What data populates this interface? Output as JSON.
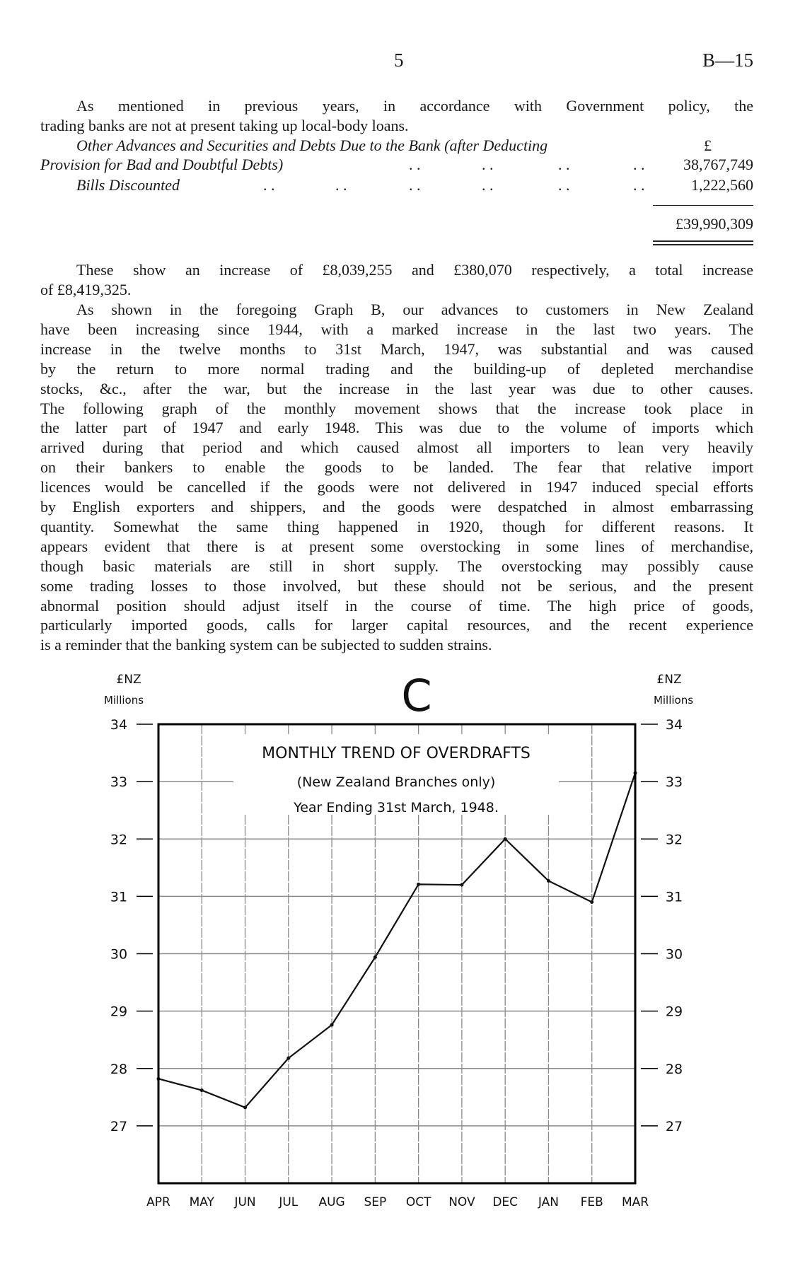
{
  "header": {
    "page_number": "5",
    "reference": "B—15"
  },
  "para1": [
    "As mentioned in previous years, in accordance with Government policy, the",
    "trading banks are not at present taking up local-body loans."
  ],
  "statement": {
    "currency_symbol": "£",
    "leader": ". .",
    "rows": [
      {
        "label_line1": "Other Advances and Securities and Debts Due to the Bank (after Deducting",
        "label_line2": "Provision for Bad and Doubtful Debts)",
        "value": "38,767,749"
      },
      {
        "label": "Bills Discounted",
        "value": "1,222,560"
      }
    ],
    "total": "£39,990,309"
  },
  "para2": [
    "These show an increase of £8,039,255 and £380,070 respectively, a total increase",
    "of £8,419,325."
  ],
  "para3": [
    "As shown in the foregoing Graph B, our advances to customers in New Zealand",
    "have been increasing since 1944, with a marked increase in the last two years. The",
    "increase in the twelve months to 31st March, 1947, was substantial and was caused",
    "by the return to more normal trading and the building-up of depleted merchandise",
    "stocks, &c., after the war, but the increase in the last year was due to other causes.",
    "The following graph of the monthly movement shows that the increase took place in",
    "the latter part of 1947 and early 1948. This was due to the volume of imports which",
    "arrived during that period and which caused almost all importers to lean very heavily",
    "on their bankers to enable the goods to be landed. The fear that relative import",
    "licences would be cancelled if the goods were not delivered in 1947 induced special efforts",
    "by English exporters and shippers, and the goods were despatched in almost embarrassing",
    "quantity. Somewhat the same thing happened in 1920, though for different reasons. It",
    "appears evident that there is at present some overstocking in some lines of merchandise,",
    "though basic materials are still in short supply. The overstocking may possibly cause",
    "some trading losses to those involved, but these should not be serious, and the present",
    "abnormal position should adjust itself in the course of time. The high price of goods,",
    "particularly imported goods, calls for larger capital resources, and the recent experience",
    "is a reminder that the banking system can be subjected to sudden strains."
  ],
  "chart_data": {
    "type": "line",
    "graph_letter": "C",
    "title": "MONTHLY TREND OF OVERDRAFTS",
    "subtitle": "(New Zealand Branches only)",
    "subtitle2": "Year Ending 31st March, 1948.",
    "ylabel_left": [
      "£NZ",
      "Millions"
    ],
    "ylabel_right": [
      "£NZ",
      "Millions"
    ],
    "categories": [
      "APR",
      "MAY",
      "JUN",
      "JUL",
      "AUG",
      "SEP",
      "OCT",
      "NOV",
      "DEC",
      "JAN",
      "FEB",
      "MAR"
    ],
    "values": [
      27.82,
      27.62,
      27.32,
      28.18,
      28.76,
      29.94,
      31.21,
      31.2,
      32.0,
      31.27,
      30.9,
      33.15
    ],
    "yticks": [
      "34",
      "33",
      "32",
      "31",
      "30",
      "29",
      "28",
      "27"
    ],
    "ylim": [
      26,
      34
    ],
    "grid": true,
    "colors": {
      "line": "#111111",
      "grid": "#8a8a8a",
      "frame": "#000000"
    }
  }
}
